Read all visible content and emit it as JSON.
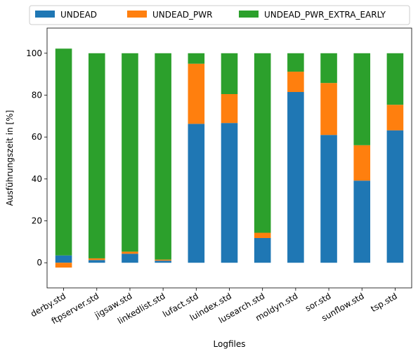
{
  "chart_data": {
    "type": "bar",
    "stacked": true,
    "categories": [
      "derby.std",
      "ftpserver.std",
      "jigsaw.std",
      "linkedlist.std",
      "lufact.std",
      "luindex.std",
      "lusearch.std",
      "moldyn.std",
      "sor.std",
      "sunflow.std",
      "tsp.std"
    ],
    "series": [
      {
        "name": "UNDEAD",
        "color": "#1f77b4",
        "values": [
          3.5,
          1.3,
          4.3,
          1.0,
          66.3,
          66.7,
          11.8,
          81.5,
          61.0,
          39.2,
          63.2
        ]
      },
      {
        "name": "UNDEAD_PWR",
        "color": "#ff7f0e",
        "values": [
          -2.3,
          0.8,
          1.0,
          0.5,
          28.7,
          13.8,
          2.5,
          9.7,
          24.8,
          16.9,
          12.2
        ]
      },
      {
        "name": "UNDEAD_PWR_EXTRA_EARLY",
        "color": "#2ca02c",
        "values": [
          98.7,
          97.9,
          94.7,
          98.5,
          5.0,
          19.5,
          85.7,
          8.8,
          14.2,
          43.9,
          24.6
        ]
      }
    ],
    "xlabel": "Logfiles",
    "ylabel": "Ausführungszeit in [%]",
    "ylim": [
      -12,
      112
    ],
    "yticks": [
      0,
      20,
      40,
      60,
      80,
      100
    ],
    "grid": false,
    "legend": "top-center, above plot, 3 columns"
  }
}
